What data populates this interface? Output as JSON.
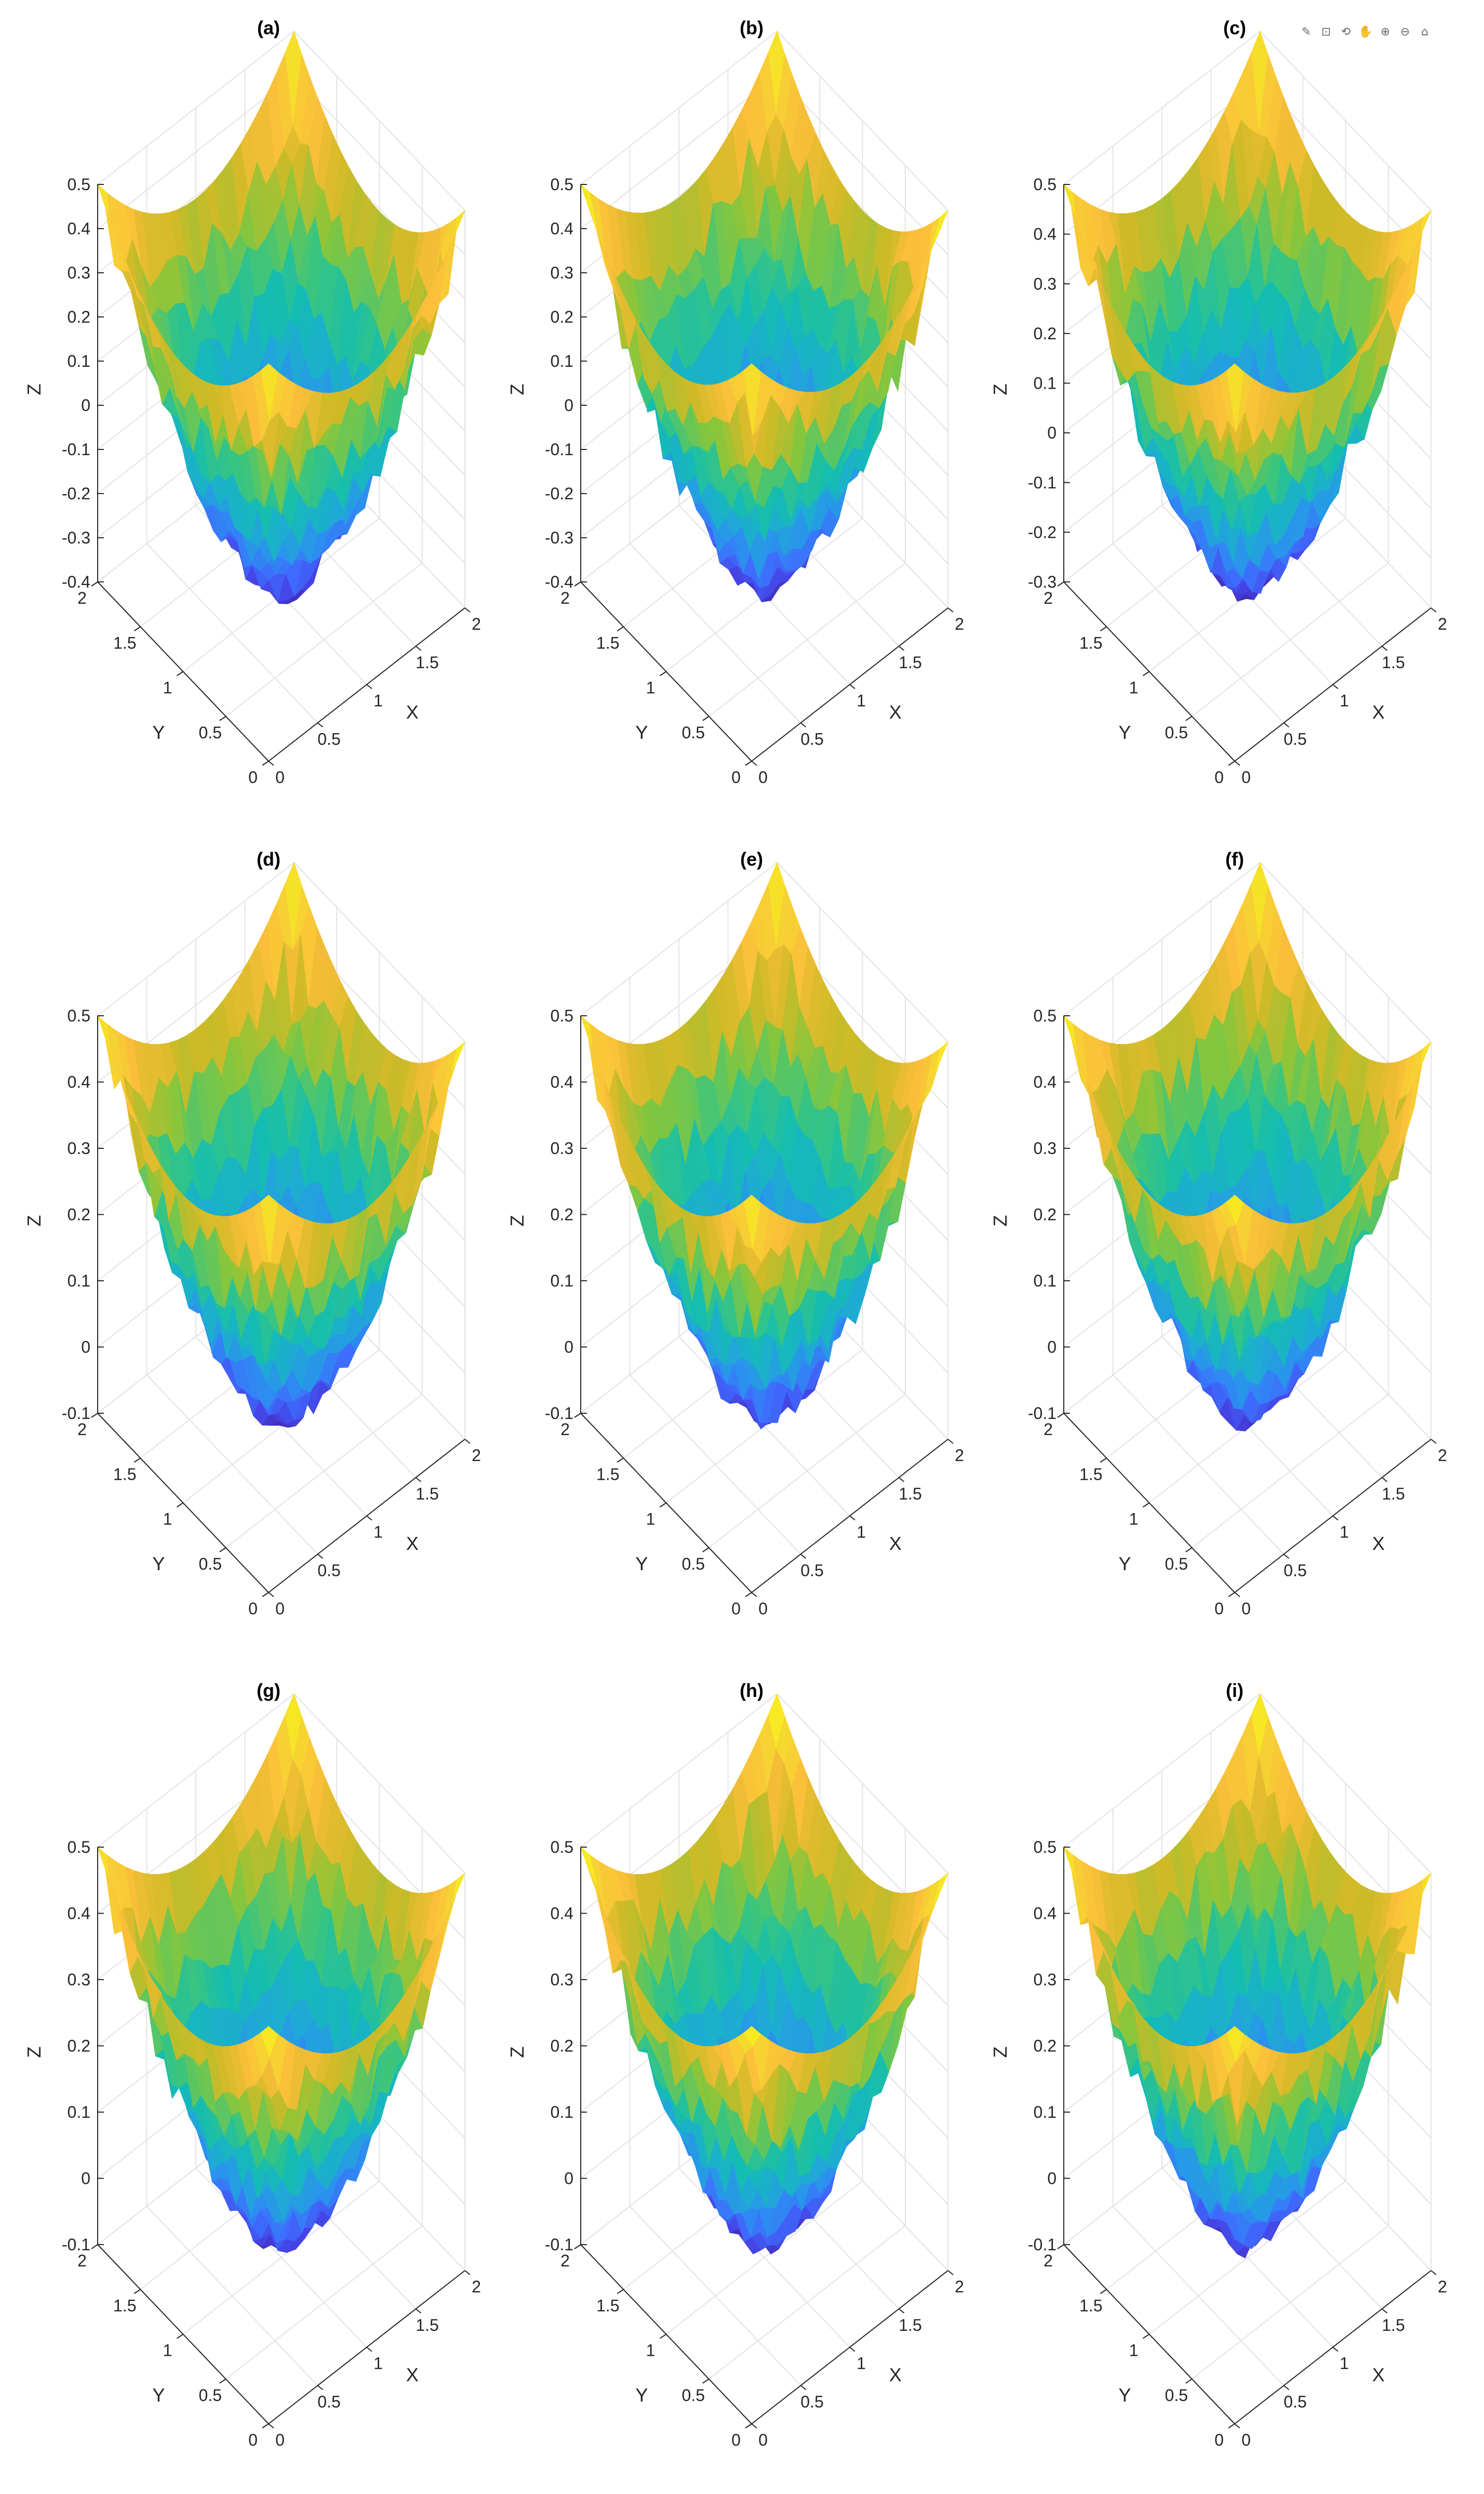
{
  "toolbar": {
    "icons": [
      "edit-icon",
      "data-tip-icon",
      "rotate-icon",
      "pan-icon",
      "zoom-in-icon",
      "zoom-out-icon",
      "home-icon"
    ],
    "glyphs": [
      "✎",
      "⊡",
      "⟲",
      "✋",
      "⊕",
      "⊖",
      "⌂"
    ]
  },
  "colormap": [
    "#3e26a8",
    "#4543e4",
    "#3e6dfd",
    "#2b91ef",
    "#1eacd2",
    "#14bdb1",
    "#3bc57e",
    "#87c63c",
    "#cfba27",
    "#fbbe3b",
    "#f5d730",
    "#f9fb15"
  ],
  "chart_data": [
    {
      "type": "surface",
      "title": "(a)",
      "xlabel": "X",
      "ylabel": "Y",
      "zlabel": "Z",
      "xlim": [
        0,
        2
      ],
      "ylim": [
        0,
        2
      ],
      "zlim": [
        -0.4,
        0.5
      ],
      "xticks": [
        "0",
        "0.5",
        "1",
        "1.5",
        "2"
      ],
      "yticks": [
        "0",
        "0.5",
        "1",
        "1.5",
        "2"
      ],
      "zticks": [
        "-0.4",
        "-0.3",
        "-0.2",
        "-0.1",
        "0",
        "0.1",
        "0.2",
        "0.3",
        "0.4",
        "0.5"
      ],
      "zmin": -0.38,
      "zmax": 0.5,
      "grid": true
    },
    {
      "type": "surface",
      "title": "(b)",
      "xlabel": "X",
      "ylabel": "Y",
      "zlabel": "Z",
      "xlim": [
        0,
        2
      ],
      "ylim": [
        0,
        2
      ],
      "zlim": [
        -0.4,
        0.5
      ],
      "xticks": [
        "0",
        "0.5",
        "1",
        "1.5",
        "2"
      ],
      "yticks": [
        "0",
        "0.5",
        "1",
        "1.5",
        "2"
      ],
      "zticks": [
        "-0.4",
        "-0.3",
        "-0.2",
        "-0.1",
        "0",
        "0.1",
        "0.2",
        "0.3",
        "0.4",
        "0.5"
      ],
      "zmin": -0.37,
      "zmax": 0.5,
      "grid": true
    },
    {
      "type": "surface",
      "title": "(c)",
      "xlabel": "X",
      "ylabel": "Y",
      "zlabel": "Z",
      "xlim": [
        0,
        2
      ],
      "ylim": [
        0,
        2
      ],
      "zlim": [
        -0.3,
        0.5
      ],
      "xticks": [
        "0",
        "0.5",
        "1",
        "1.5",
        "2"
      ],
      "yticks": [
        "0",
        "0.5",
        "1",
        "1.5",
        "2"
      ],
      "zticks": [
        "-0.3",
        "-0.2",
        "-0.1",
        "0",
        "0.1",
        "0.2",
        "0.3",
        "0.4",
        "0.5"
      ],
      "zmin": -0.28,
      "zmax": 0.5,
      "grid": true
    },
    {
      "type": "surface",
      "title": "(d)",
      "xlabel": "X",
      "ylabel": "Y",
      "zlabel": "Z",
      "xlim": [
        0,
        2
      ],
      "ylim": [
        0,
        2
      ],
      "zlim": [
        -0.1,
        0.5
      ],
      "xticks": [
        "0",
        "0.5",
        "1",
        "1.5",
        "2"
      ],
      "yticks": [
        "0",
        "0.5",
        "1",
        "1.5",
        "2"
      ],
      "zticks": [
        "-0.1",
        "0",
        "0.1",
        "0.2",
        "0.3",
        "0.4",
        "0.5"
      ],
      "zmin": -0.08,
      "zmax": 0.5,
      "grid": true
    },
    {
      "type": "surface",
      "title": "(e)",
      "xlabel": "X",
      "ylabel": "Y",
      "zlabel": "Z",
      "xlim": [
        0,
        2
      ],
      "ylim": [
        0,
        2
      ],
      "zlim": [
        -0.1,
        0.5
      ],
      "xticks": [
        "0",
        "0.5",
        "1",
        "1.5",
        "2"
      ],
      "yticks": [
        "0",
        "0.5",
        "1",
        "1.5",
        "2"
      ],
      "zticks": [
        "-0.1",
        "0",
        "0.1",
        "0.2",
        "0.3",
        "0.4",
        "0.5"
      ],
      "zmin": -0.08,
      "zmax": 0.5,
      "grid": true
    },
    {
      "type": "surface",
      "title": "(f)",
      "xlabel": "X",
      "ylabel": "Y",
      "zlabel": "Z",
      "xlim": [
        0,
        2
      ],
      "ylim": [
        0,
        2
      ],
      "zlim": [
        -0.1,
        0.5
      ],
      "xticks": [
        "0",
        "0.5",
        "1",
        "1.5",
        "2"
      ],
      "yticks": [
        "0",
        "0.5",
        "1",
        "1.5",
        "2"
      ],
      "zticks": [
        "-0.1",
        "0",
        "0.1",
        "0.2",
        "0.3",
        "0.4",
        "0.5"
      ],
      "zmin": -0.08,
      "zmax": 0.5,
      "grid": true
    },
    {
      "type": "surface",
      "title": "(g)",
      "xlabel": "X",
      "ylabel": "Y",
      "zlabel": "Z",
      "xlim": [
        0,
        2
      ],
      "ylim": [
        0,
        2
      ],
      "zlim": [
        -0.1,
        0.5
      ],
      "xticks": [
        "0",
        "0.5",
        "1",
        "1.5",
        "2"
      ],
      "yticks": [
        "0",
        "0.5",
        "1",
        "1.5",
        "2"
      ],
      "zticks": [
        "-0.1",
        "0",
        "0.1",
        "0.2",
        "0.3",
        "0.4",
        "0.5"
      ],
      "zmin": -0.07,
      "zmax": 0.5,
      "grid": true
    },
    {
      "type": "surface",
      "title": "(h)",
      "xlabel": "X",
      "ylabel": "Y",
      "zlabel": "Z",
      "xlim": [
        0,
        2
      ],
      "ylim": [
        0,
        2
      ],
      "zlim": [
        -0.1,
        0.5
      ],
      "xticks": [
        "0",
        "0.5",
        "1",
        "1.5",
        "2"
      ],
      "yticks": [
        "0",
        "0.5",
        "1",
        "1.5",
        "2"
      ],
      "zticks": [
        "-0.1",
        "0",
        "0.1",
        "0.2",
        "0.3",
        "0.4",
        "0.5"
      ],
      "zmin": -0.07,
      "zmax": 0.5,
      "grid": true
    },
    {
      "type": "surface",
      "title": "(i)",
      "xlabel": "X",
      "ylabel": "Y",
      "zlabel": "Z",
      "xlim": [
        0,
        2
      ],
      "ylim": [
        0,
        2
      ],
      "zlim": [
        -0.1,
        0.5
      ],
      "xticks": [
        "0",
        "0.5",
        "1",
        "1.5",
        "2"
      ],
      "yticks": [
        "0",
        "0.5",
        "1",
        "1.5",
        "2"
      ],
      "zticks": [
        "-0.1",
        "0",
        "0.1",
        "0.2",
        "0.3",
        "0.4",
        "0.5"
      ],
      "zmin": -0.07,
      "zmax": 0.5,
      "grid": true
    }
  ]
}
